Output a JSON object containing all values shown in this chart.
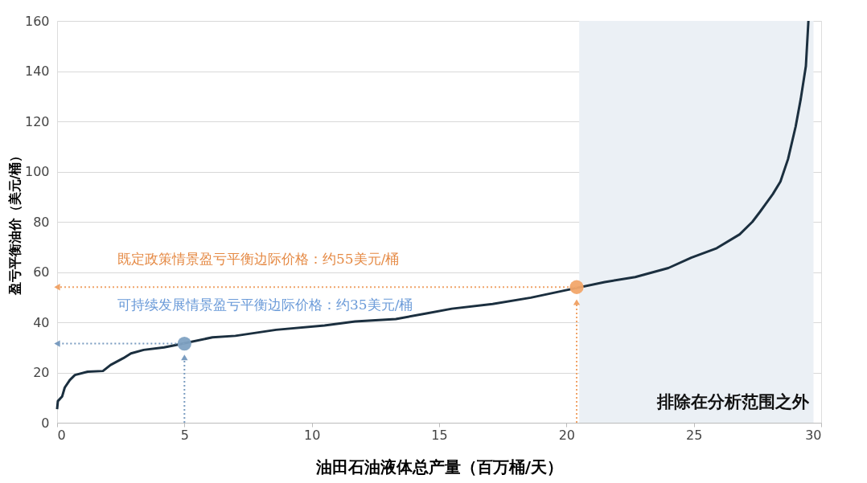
{
  "chart_data": {
    "type": "line",
    "xlabel": "油田石油液体总产量（百万桶/天）",
    "ylabel": "盈亏平衡油价（美元/桶）",
    "x": [
      0,
      0.03,
      0.2,
      0.3,
      0.5,
      0.7,
      1.2,
      1.8,
      2.1,
      2.6,
      2.9,
      3.4,
      4.2,
      4.6,
      6.1,
      7.0,
      8.6,
      10.5,
      11.7,
      13.3,
      14.5,
      15.5,
      17.1,
      18.6,
      19.9,
      21.5,
      22.7,
      24.0,
      24.9,
      25.9,
      26.8,
      27.3,
      27.6,
      28.1,
      28.4,
      28.7,
      29.0,
      29.2,
      29.4,
      29.5
    ],
    "series": [
      {
        "color": "#1b2f3f",
        "values": [
          5.4,
          8.6,
          10.5,
          14,
          17,
          19,
          20.3,
          20.6,
          23,
          25.7,
          27.6,
          29,
          30,
          30.8,
          34,
          34.6,
          37,
          38.7,
          40.3,
          41.3,
          43.5,
          45.4,
          47.3,
          49.8,
          52.6,
          56,
          58,
          61.6,
          65.7,
          69.5,
          75,
          80,
          84,
          91,
          96,
          105,
          118,
          129,
          142,
          160
        ]
      },
      {
        "type": "line",
        "line_style": "dotted",
        "marker": "triangle",
        "color": "#f0a469",
        "x": [
          20.4,
          0
        ],
        "values": [
          54,
          54
        ]
      },
      {
        "type": "line",
        "line_style": "dotted",
        "marker": "triangle",
        "color": "#f0a469",
        "x": [
          20.4,
          20.4
        ],
        "values": [
          0,
          48
        ]
      },
      {
        "type": "line",
        "line_style": "dotted",
        "marker": "triangle",
        "color": "#7a9cc0",
        "x": [
          5.0,
          0
        ],
        "values": [
          31.5,
          31.5
        ]
      },
      {
        "type": "line",
        "line_style": "dotted",
        "marker": "triangle",
        "color": "#7a9cc0",
        "x": [
          5.0,
          5.0
        ],
        "values": [
          0,
          26
        ]
      },
      {
        "type": "scatter",
        "marker": "circle",
        "color": "#f2a66a",
        "x": [
          20.4
        ],
        "values": [
          54
        ]
      },
      {
        "type": "scatter",
        "marker": "circle",
        "color": "#7fa2c3",
        "x": [
          5.0
        ],
        "values": [
          31.5
        ]
      }
    ],
    "xlim": [
      0,
      30
    ],
    "ylim": [
      0,
      160
    ],
    "xticks": [
      0,
      5,
      10,
      15,
      20,
      25,
      30
    ],
    "yticks": [
      0,
      20,
      40,
      60,
      80,
      100,
      120,
      140,
      160
    ],
    "grid": "y",
    "marker": "none",
    "line_style": "solid",
    "bands": [
      {
        "axis": "x",
        "from": 20.5,
        "to": 29.7,
        "label": "排除在分析范围之外",
        "color": "#ebf0f5"
      }
    ],
    "annotations": [
      "既定政策情景盈亏平衡边际价格：约55美元/桶",
      "可持续发展情景盈亏平衡边际价格：约35美元/桶"
    ]
  }
}
